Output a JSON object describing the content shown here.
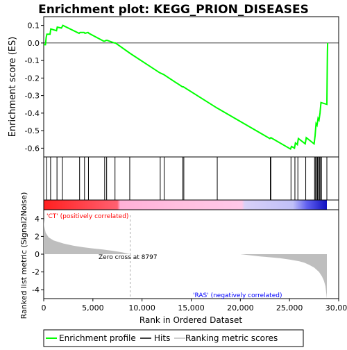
{
  "chart_data": {
    "type": "line",
    "title": "Enrichment plot: KEGG_PRION_DISEASES",
    "xlabel": "Rank in Ordered Dataset",
    "xlim": [
      0,
      30000
    ],
    "x_ticks": [
      0,
      5000,
      10000,
      15000,
      20000,
      25000,
      30000
    ],
    "x_tick_labels": [
      "0",
      "5,000",
      "10,000",
      "15,000",
      "20,000",
      "25,000",
      "30,000"
    ],
    "n_genes": 28800,
    "colors": {
      "es_line": "#00ff00",
      "hits": "#000000",
      "metric_fill": "#bebebe",
      "pos_band": "#ff0000",
      "neg_band": "#0000ff",
      "zero_cross_line": "#aaaaaa",
      "pos_label": "#ff0000",
      "neg_label": "#0000ff"
    },
    "es_panel": {
      "ylabel": "Enrichment score (ES)",
      "ylim": [
        -0.65,
        0.15
      ],
      "y_ticks": [
        0.1,
        0.0,
        -0.1,
        -0.2,
        -0.3,
        -0.4,
        -0.5,
        -0.6
      ],
      "y_tick_labels": [
        "0.1",
        "0.0",
        "-0.1",
        "-0.2",
        "-0.3",
        "-0.4",
        "-0.5",
        "-0.6"
      ],
      "series": [
        {
          "x": [
            0,
            180,
            250,
            320,
            640,
            720,
            1300,
            1380,
            1800,
            1950,
            3600,
            3700,
            4100,
            4200,
            4500,
            4600,
            6100,
            6200,
            6350,
            6450,
            7200,
            7300,
            8800,
            11800,
            12200,
            14100,
            14200,
            17600,
            23000,
            23100,
            25100,
            25200,
            25500,
            25600,
            25800,
            25900,
            26600,
            26700,
            27500,
            27600,
            27700,
            27800,
            27900,
            28000,
            28100,
            28200,
            28800,
            28820,
            28840,
            28860,
            28880
          ],
          "y": [
            -0.01,
            -0.01,
            0.03,
            0.05,
            0.05,
            0.08,
            0.07,
            0.09,
            0.085,
            0.1,
            0.055,
            0.06,
            0.06,
            0.055,
            0.06,
            0.055,
            0.01,
            0.01,
            0.015,
            0.015,
            0.0,
            0.0,
            -0.06,
            -0.17,
            -0.18,
            -0.25,
            -0.25,
            -0.37,
            -0.545,
            -0.54,
            -0.605,
            -0.59,
            -0.6,
            -0.57,
            -0.58,
            -0.545,
            -0.575,
            -0.54,
            -0.575,
            -0.53,
            -0.46,
            -0.47,
            -0.43,
            -0.44,
            -0.4,
            -0.34,
            -0.35,
            -0.24,
            -0.12,
            -0.05,
            0.0
          ]
        }
      ]
    },
    "hits_panel": {
      "positions": [
        300,
        700,
        1350,
        1900,
        3650,
        4150,
        4550,
        6200,
        6400,
        7250,
        8750,
        11850,
        12250,
        14150,
        14250,
        17650,
        23050,
        23100,
        25150,
        25550,
        25850,
        26650,
        27550,
        27650,
        27750,
        27850,
        27950,
        28050,
        28150,
        28250,
        28800
      ]
    },
    "metric_panel": {
      "ylabel": "Ranked list metric (Signal2Noise)",
      "ylim": [
        -5,
        5
      ],
      "y_ticks": [
        4,
        2,
        0,
        -2,
        -4
      ],
      "y_tick_labels": [
        "4",
        "2",
        "0",
        "-2",
        "-4"
      ],
      "x": [
        0,
        50,
        200,
        500,
        1000,
        2000,
        3000,
        4000,
        5000,
        6000,
        7000,
        8000,
        8797,
        10000,
        15000,
        20000,
        22000,
        24000,
        25000,
        26000,
        26500,
        27000,
        27500,
        28000,
        28300,
        28500,
        28650,
        28750,
        28800
      ],
      "y": [
        3.9,
        3.2,
        2.4,
        1.9,
        1.55,
        1.2,
        0.95,
        0.78,
        0.65,
        0.52,
        0.38,
        0.2,
        0.0,
        0.0,
        0.0,
        0.0,
        -0.25,
        -0.45,
        -0.6,
        -0.8,
        -0.95,
        -1.2,
        -1.5,
        -2.0,
        -2.5,
        -3.0,
        -3.6,
        -4.5,
        -5.0
      ],
      "zero_cross": 8797,
      "zero_cross_label": "Zero cross at 8797",
      "pos_label": "'CT' (positively correlated)",
      "neg_label": "'RAS' (negatively correlated)"
    },
    "legend": {
      "placement": "bottom",
      "entries": [
        {
          "label": "Enrichment profile",
          "color": "#00ff00"
        },
        {
          "label": "Hits",
          "color": "#000000"
        },
        {
          "label": "Ranking metric scores",
          "color": "#bebebe"
        }
      ]
    }
  }
}
